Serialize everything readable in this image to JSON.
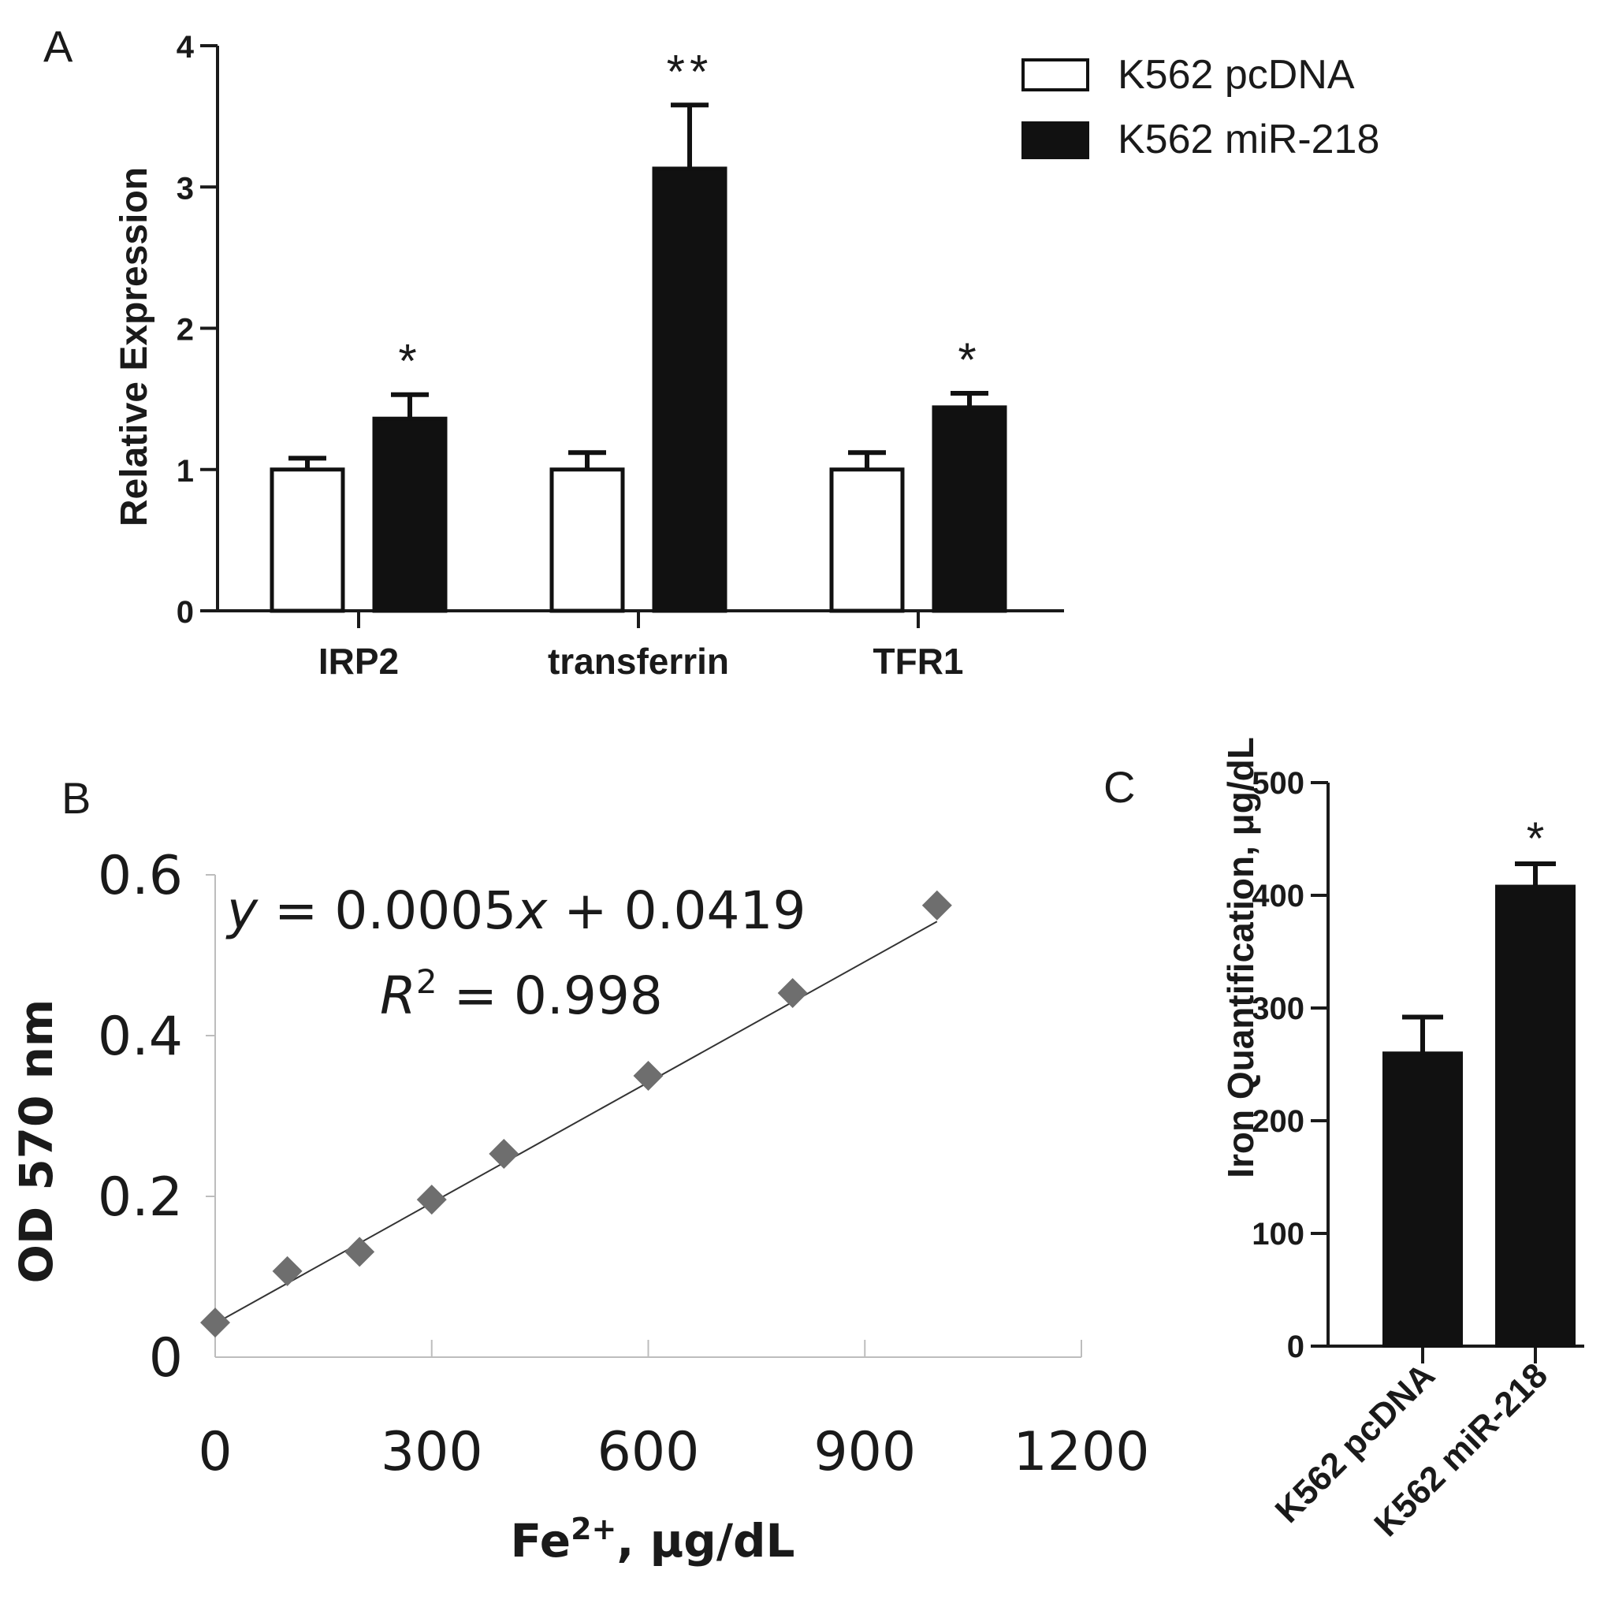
{
  "chart_data": [
    {
      "panel": "A",
      "type": "bar",
      "ylabel": "Relative Expression",
      "ylim": [
        0,
        4
      ],
      "yticks": [
        "0",
        "1",
        "2",
        "3",
        "4"
      ],
      "categories": [
        "IRP2",
        "transferrin",
        "TFR1"
      ],
      "series": [
        {
          "name": "K562 pcDNA",
          "values": [
            1.0,
            1.0,
            1.0
          ],
          "errors": [
            0.08,
            0.12,
            0.12
          ],
          "color": "#ffffff"
        },
        {
          "name": "K562 miR-218",
          "values": [
            1.36,
            3.13,
            1.44
          ],
          "errors": [
            0.17,
            0.45,
            0.1
          ],
          "color": "#111111"
        }
      ],
      "significance": [
        "*",
        "**",
        "*"
      ],
      "legend": "top-right"
    },
    {
      "panel": "B",
      "type": "scatter",
      "xlabel_main": "Fe",
      "xlabel_sup": "2+",
      "xlabel_rest": ", μg/dL",
      "ylabel": "OD 570 nm",
      "xlim": [
        0,
        1200
      ],
      "ylim": [
        0,
        0.6
      ],
      "xticks": [
        "0",
        "300",
        "600",
        "900",
        "1200"
      ],
      "yticks": [
        "0",
        "0.2",
        "0.4",
        "0.6"
      ],
      "x": [
        0,
        100,
        200,
        300,
        400,
        600,
        800,
        1000
      ],
      "y": [
        0.043,
        0.107,
        0.131,
        0.196,
        0.253,
        0.35,
        0.453,
        0.562
      ],
      "trendline": {
        "slope": 0.0005,
        "intercept": 0.0419
      },
      "equation_y": "y",
      "equation_mid": " = 0.0005",
      "equation_x": "x",
      "equation_end": " + 0.0419",
      "r2_r": "R",
      "r2_sup": "2",
      "r2_end": " = 0.998",
      "marker_color": "#6e6e6e"
    },
    {
      "panel": "C",
      "type": "bar",
      "ylabel": "Iron Quantification, μg/dL",
      "ylim": [
        0,
        500
      ],
      "yticks": [
        "0",
        "100",
        "200",
        "300",
        "400",
        "500"
      ],
      "categories": [
        "K562 pcDNA",
        "K562 miR-218"
      ],
      "values": [
        260,
        408
      ],
      "errors": [
        32,
        20
      ],
      "color": "#111111",
      "significance": [
        "",
        "*"
      ]
    }
  ]
}
